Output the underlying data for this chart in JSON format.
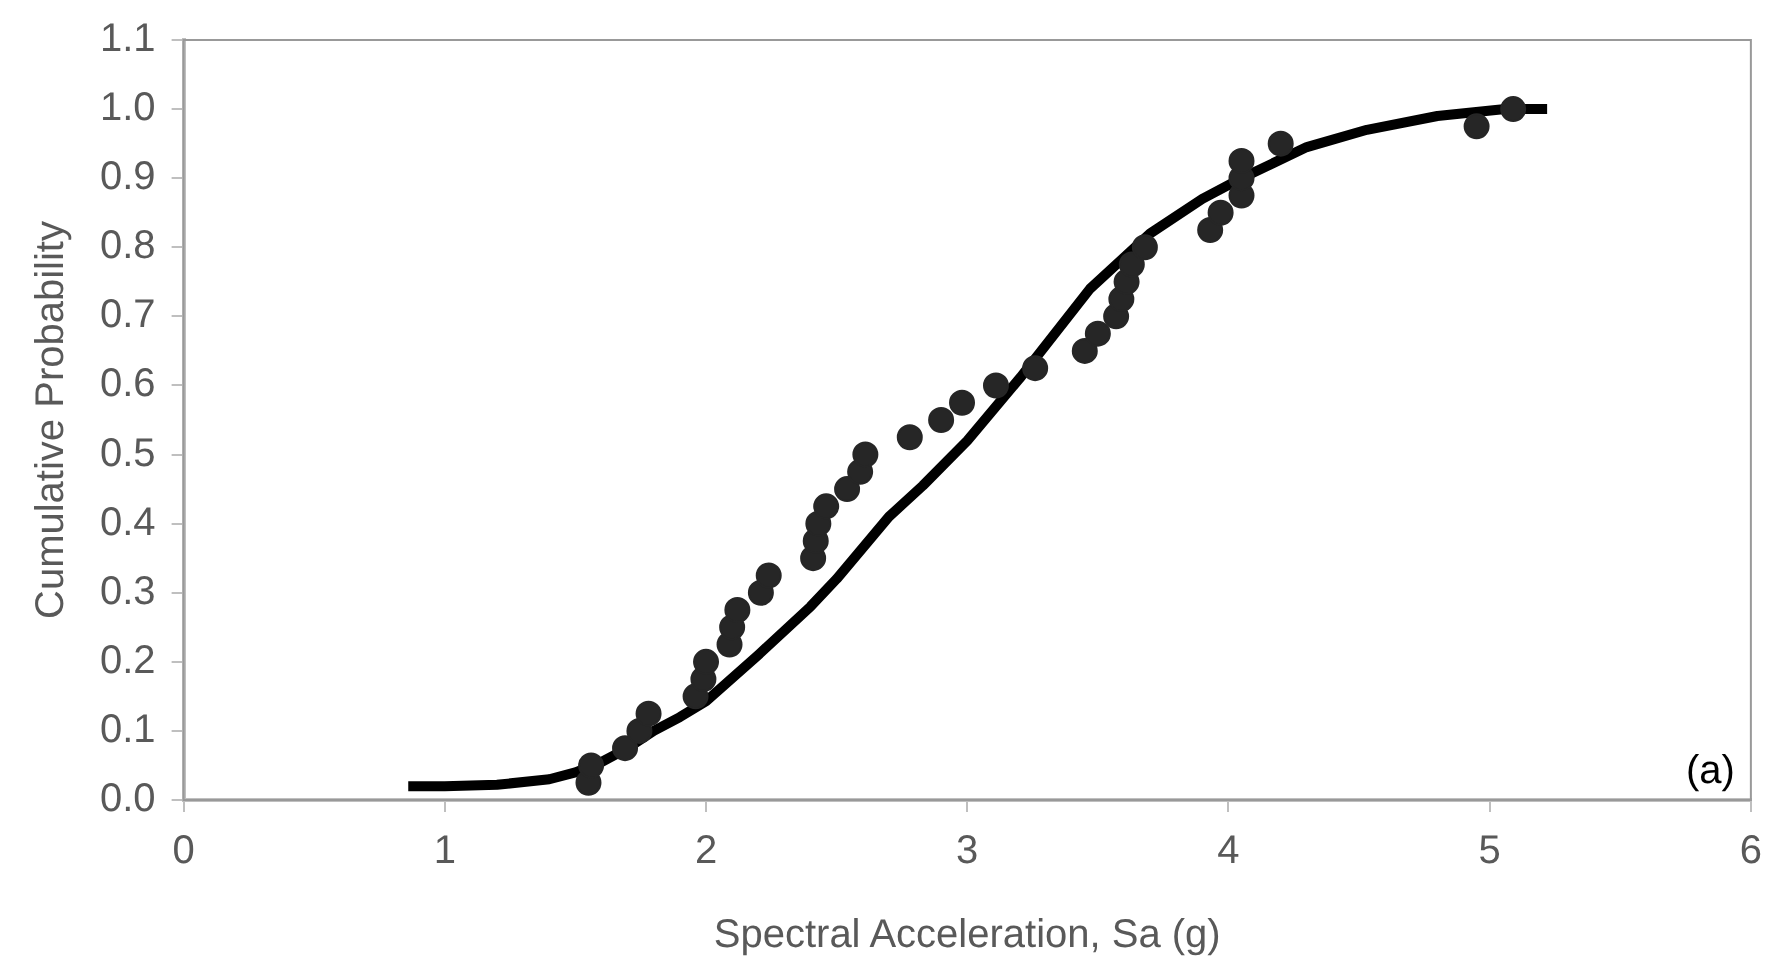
{
  "chart_data": {
    "type": "scatter",
    "xlabel": "Spectral Acceleration, Sa (g)",
    "ylabel": "Cumulative Probability",
    "annotations": [
      "(a)"
    ],
    "xlim": [
      0,
      6
    ],
    "xticks": [
      0,
      1,
      2,
      3,
      4,
      5,
      6
    ],
    "ylim": [
      0,
      1.1
    ],
    "yticks": [
      {
        "value": 0,
        "label": "0.0"
      },
      0.1,
      0.2,
      0.3,
      0.4,
      0.5,
      0.6,
      0.7,
      0.8,
      0.9,
      {
        "value": 1,
        "label": "1.0"
      },
      1.1
    ],
    "grid": false,
    "legend": false,
    "marker": "circle",
    "series": [
      {
        "color": "#262626",
        "x": [
          1.55,
          1.56,
          1.69,
          1.745,
          1.78,
          1.96,
          1.99,
          2.0,
          2.09,
          2.1,
          2.12,
          2.21,
          2.24,
          2.41,
          2.42,
          2.43,
          2.46,
          2.54,
          2.59,
          2.61,
          2.78,
          2.9,
          2.98,
          3.11,
          3.26,
          3.45,
          3.5,
          3.57,
          3.59,
          3.61,
          3.63,
          3.68,
          3.93,
          3.97,
          4.05,
          4.05,
          4.05,
          4.2,
          4.95,
          5.09
        ],
        "values": [
          0.025,
          0.05,
          0.075,
          0.1,
          0.125,
          0.15,
          0.175,
          0.2,
          0.225,
          0.25,
          0.275,
          0.3,
          0.325,
          0.35,
          0.375,
          0.4,
          0.425,
          0.45,
          0.475,
          0.5,
          0.525,
          0.55,
          0.575,
          0.6,
          0.625,
          0.65,
          0.675,
          0.7,
          0.725,
          0.75,
          0.775,
          0.8,
          0.825,
          0.85,
          0.875,
          0.9,
          0.925,
          0.95,
          0.975,
          1.0
        ]
      },
      {
        "type": "line",
        "color": "#000000",
        "marker": "none",
        "line_style": "solid",
        "x": [
          0.86,
          1.0,
          1.2,
          1.4,
          1.5,
          1.6,
          1.7,
          1.8,
          1.9,
          2.0,
          2.2,
          2.4,
          2.5,
          2.7,
          2.83,
          3.0,
          3.2,
          3.47,
          3.7,
          3.9,
          4.05,
          4.3,
          4.53,
          4.8,
          5.06,
          5.22
        ],
        "values": [
          0.02,
          0.02,
          0.022,
          0.03,
          0.04,
          0.055,
          0.075,
          0.1,
          0.12,
          0.143,
          0.21,
          0.28,
          0.32,
          0.41,
          0.455,
          0.52,
          0.61,
          0.74,
          0.82,
          0.87,
          0.9,
          0.945,
          0.97,
          0.99,
          1.0,
          1.0
        ]
      }
    ]
  }
}
